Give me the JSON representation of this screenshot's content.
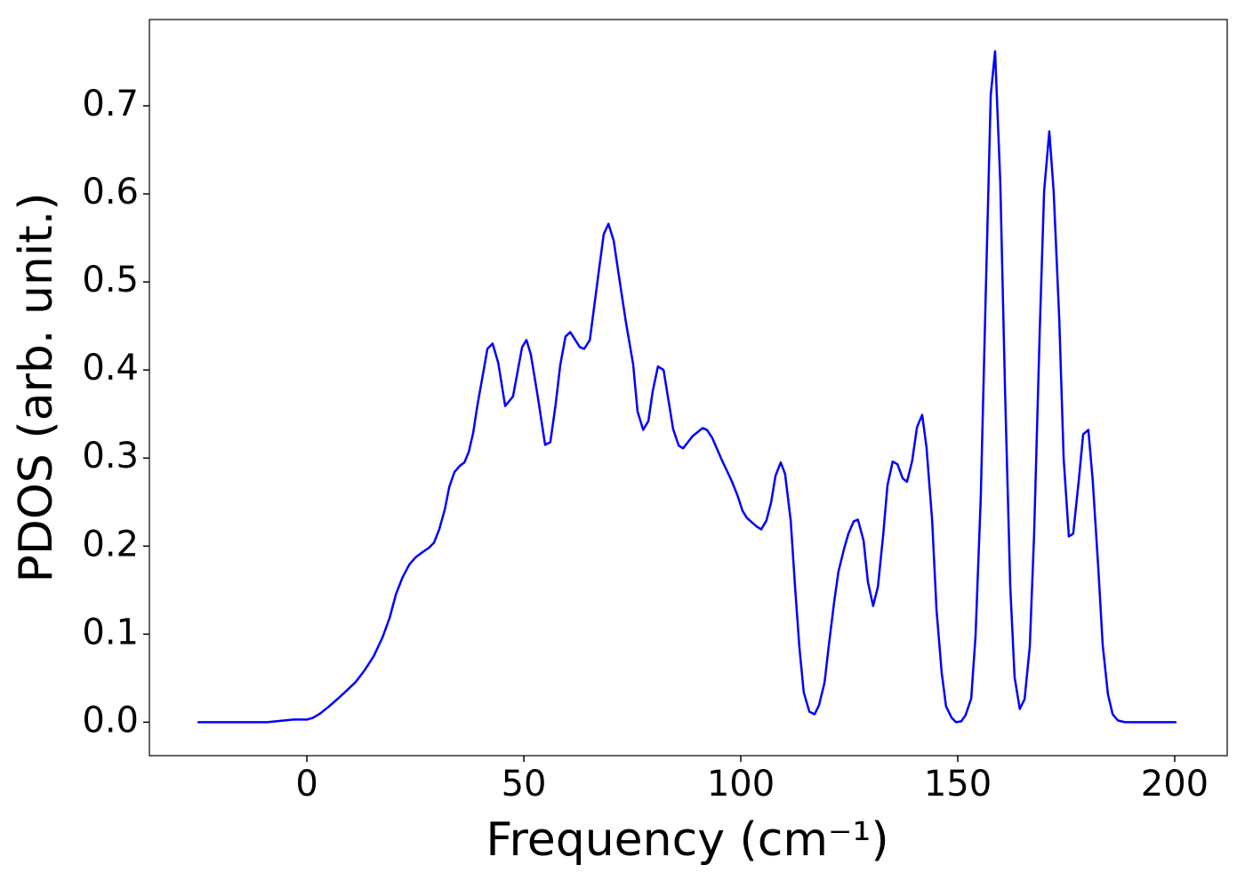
{
  "chart_data": {
    "type": "line",
    "xlabel": "Frequency (cm⁻¹)",
    "ylabel": "PDOS (arb. unit.)",
    "xlim": [
      -36.3,
      212.1
    ],
    "ylim": [
      -0.038,
      0.798
    ],
    "xticks": [
      0,
      50,
      100,
      150,
      200
    ],
    "yticks": [
      {
        "value": 0,
        "label": "0.0"
      },
      0.1,
      0.2,
      0.3,
      0.4,
      0.5,
      0.6,
      0.7
    ],
    "grid": false,
    "series": [
      {
        "color": "#0000ff",
        "x": [
          -25.2,
          -9.2,
          -5.1,
          -3,
          0,
          1.4,
          3.1,
          5.1,
          7.2,
          9.2,
          11.3,
          13.3,
          15.4,
          17.4,
          19.1,
          20.5,
          22,
          23.6,
          25,
          26.6,
          28.1,
          29.3,
          30.5,
          31.8,
          32.8,
          34,
          35.2,
          36.3,
          37.3,
          38.3,
          39.3,
          40.6,
          41.6,
          42.8,
          44.1,
          45.7,
          47.5,
          49.6,
          50.6,
          51.6,
          53.2,
          54.9,
          56.1,
          57.3,
          58.4,
          59.6,
          60.7,
          62.9,
          63.9,
          65.2,
          67.4,
          68.4,
          69.5,
          70.7,
          71.9,
          73.5,
          75.2,
          76.2,
          77.5,
          78.7,
          79.7,
          80.9,
          82.2,
          84.4,
          85.7,
          86.7,
          88.9,
          91.2,
          92.2,
          93.4,
          95.7,
          97.9,
          99.2,
          100.4,
          101.4,
          103.7,
          104.7,
          105.9,
          107,
          108,
          109.2,
          110.2,
          111.5,
          112.5,
          113.5,
          114.5,
          115.8,
          117,
          118,
          119.3,
          120.3,
          121.5,
          122.5,
          123.8,
          124.8,
          126,
          127,
          128.3,
          129.3,
          130.5,
          131.6,
          132.8,
          133.8,
          135,
          136.1,
          137.3,
          138.3,
          139.5,
          140.6,
          141.8,
          142.8,
          144.1,
          145.1,
          146.3,
          147.3,
          148.6,
          149.6,
          150.8,
          151.8,
          153.1,
          154.1,
          155.3,
          156.4,
          157.6,
          158.6,
          159.8,
          160.9,
          162.1,
          163.1,
          164.3,
          165.4,
          166.6,
          167.6,
          168.9,
          169.9,
          171.1,
          172.1,
          173.4,
          174.4,
          175.6,
          176.6,
          177.9,
          178.9,
          180.1,
          181.1,
          182.4,
          183.4,
          184.6,
          185.7,
          186.9,
          188.5,
          200.4
        ],
        "values": [
          0,
          0,
          0.002,
          0.003,
          0.003,
          0.005,
          0.01,
          0.018,
          0.027,
          0.036,
          0.046,
          0.059,
          0.075,
          0.096,
          0.119,
          0.145,
          0.164,
          0.179,
          0.187,
          0.193,
          0.198,
          0.204,
          0.219,
          0.242,
          0.267,
          0.284,
          0.291,
          0.295,
          0.307,
          0.328,
          0.36,
          0.396,
          0.424,
          0.43,
          0.408,
          0.359,
          0.37,
          0.426,
          0.434,
          0.418,
          0.37,
          0.315,
          0.318,
          0.36,
          0.406,
          0.438,
          0.443,
          0.426,
          0.424,
          0.434,
          0.517,
          0.554,
          0.566,
          0.547,
          0.507,
          0.455,
          0.406,
          0.353,
          0.332,
          0.342,
          0.376,
          0.404,
          0.4,
          0.333,
          0.314,
          0.311,
          0.325,
          0.334,
          0.332,
          0.323,
          0.297,
          0.274,
          0.258,
          0.24,
          0.232,
          0.222,
          0.219,
          0.229,
          0.25,
          0.28,
          0.295,
          0.282,
          0.229,
          0.154,
          0.085,
          0.034,
          0.012,
          0.009,
          0.019,
          0.045,
          0.088,
          0.136,
          0.171,
          0.197,
          0.214,
          0.228,
          0.23,
          0.206,
          0.159,
          0.132,
          0.154,
          0.212,
          0.269,
          0.296,
          0.293,
          0.277,
          0.273,
          0.297,
          0.335,
          0.349,
          0.312,
          0.229,
          0.128,
          0.056,
          0.018,
          0.005,
          0,
          0.001,
          0.008,
          0.027,
          0.098,
          0.255,
          0.477,
          0.712,
          0.762,
          0.613,
          0.376,
          0.154,
          0.051,
          0.015,
          0.026,
          0.086,
          0.214,
          0.446,
          0.603,
          0.671,
          0.603,
          0.457,
          0.3,
          0.211,
          0.214,
          0.275,
          0.327,
          0.332,
          0.275,
          0.174,
          0.088,
          0.032,
          0.009,
          0.002,
          0,
          0
        ]
      }
    ]
  }
}
